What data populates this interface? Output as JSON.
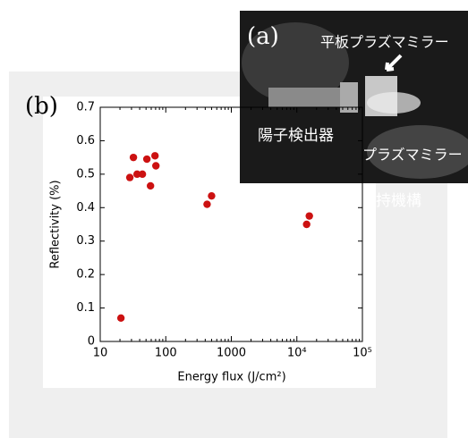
{
  "panel_a": {
    "label": "(a)",
    "annotations": [
      "平板プラズマミラー",
      "陽子検出器",
      "プラズマミラー",
      "持機構"
    ]
  },
  "chart_data": {
    "type": "scatter",
    "panel_label": "(b)",
    "x_label": "Energy flux (J/cm²)",
    "y_label": "Reflectivity  (%)",
    "log_x": true,
    "color": "#cc1111",
    "x": [
      20.7,
      28.3,
      32.1,
      36.5,
      44,
      51.5,
      58.5,
      68.5,
      70.7,
      427,
      500,
      14100,
      15500
    ],
    "values": [
      0.07,
      0.49,
      0.55,
      0.5,
      0.5,
      0.545,
      0.465,
      0.555,
      0.525,
      0.41,
      0.435,
      0.35,
      0.375
    ],
    "xlim": [
      10,
      100000
    ],
    "xticks": [
      10,
      100,
      1000,
      {
        "value": 10000,
        "label": "10⁴"
      },
      {
        "value": 100000,
        "label": "10⁵"
      }
    ],
    "ylim": [
      0,
      0.7
    ],
    "yticks": [
      0,
      0.1,
      0.2,
      0.3,
      0.4,
      0.5,
      0.6,
      0.7
    ]
  }
}
